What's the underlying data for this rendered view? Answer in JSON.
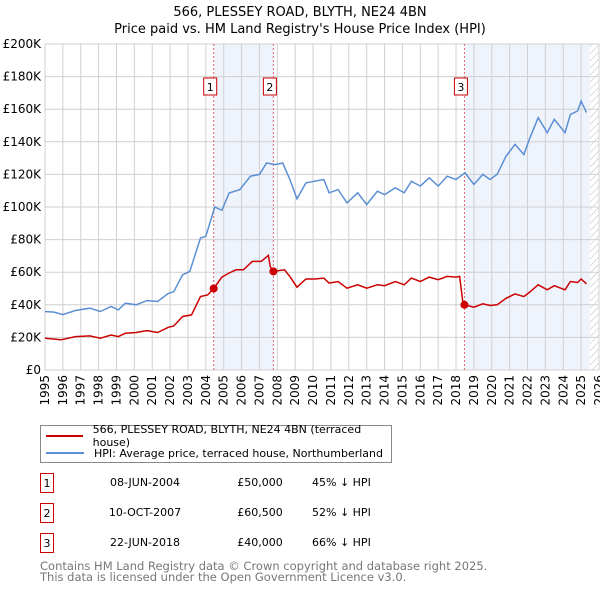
{
  "chart_data": {
    "type": "line",
    "title": "566, PLESSEY ROAD, BLYTH, NE24 4BN",
    "subtitle": "Price paid vs. HM Land Registry's House Price Index (HPI)",
    "xlim": [
      1995,
      2026
    ],
    "ylim": [
      0,
      200000
    ],
    "y_ticks": [
      {
        "v": 0,
        "label": "£0"
      },
      {
        "v": 20000,
        "label": "£20K"
      },
      {
        "v": 40000,
        "label": "£40K"
      },
      {
        "v": 60000,
        "label": "£60K"
      },
      {
        "v": 80000,
        "label": "£80K"
      },
      {
        "v": 100000,
        "label": "£100K"
      },
      {
        "v": 120000,
        "label": "£120K"
      },
      {
        "v": 140000,
        "label": "£140K"
      },
      {
        "v": 160000,
        "label": "£160K"
      },
      {
        "v": 180000,
        "label": "£180K"
      },
      {
        "v": 200000,
        "label": "£200K"
      }
    ],
    "x_ticks": [
      "1995",
      "1996",
      "1997",
      "1998",
      "1999",
      "2000",
      "2001",
      "2002",
      "2003",
      "2004",
      "2005",
      "2006",
      "2007",
      "2008",
      "2009",
      "2010",
      "2011",
      "2012",
      "2013",
      "2014",
      "2015",
      "2016",
      "2017",
      "2018",
      "2019",
      "2020",
      "2021",
      "2022",
      "2023",
      "2024",
      "2025",
      "2026"
    ],
    "grid": true,
    "shaded_ranges": [
      [
        2004.44,
        2007.78
      ],
      [
        2018.47,
        2025.5
      ]
    ],
    "hatched_from": 2025.5,
    "series": [
      {
        "name": "566, PLESSEY ROAD, BLYTH, NE24 4BN (terraced house)",
        "color": "#cc0000",
        "x": [
          1995.0,
          1995.9,
          1996.7,
          1997.5,
          1998.1,
          1998.7,
          1999.1,
          1999.5,
          2000.1,
          2000.7,
          2001.3,
          2001.9,
          2002.2,
          2002.7,
          2003.2,
          2003.7,
          2004.1,
          2004.44,
          2004.9,
          2005.3,
          2005.7,
          2006.1,
          2006.6,
          2007.1,
          2007.5,
          2007.6,
          2007.78,
          2008.4,
          2008.7,
          2009.1,
          2009.6,
          2010.1,
          2010.6,
          2010.9,
          2011.4,
          2011.9,
          2012.5,
          2013.0,
          2013.6,
          2014.0,
          2014.6,
          2015.1,
          2015.5,
          2016.0,
          2016.5,
          2017.0,
          2017.5,
          2018.0,
          2018.2,
          2018.4,
          2018.47,
          2019.0,
          2019.5,
          2019.9,
          2020.3,
          2020.8,
          2021.3,
          2021.8,
          2022.1,
          2022.6,
          2023.1,
          2023.5,
          2024.1,
          2024.4,
          2024.8,
          2025.0,
          2025.3
        ],
        "y": [
          19500,
          18500,
          20500,
          20900,
          19500,
          21500,
          20500,
          22600,
          23000,
          24200,
          23000,
          26200,
          27000,
          32800,
          33800,
          45100,
          46000,
          50000,
          57000,
          59500,
          61500,
          61500,
          66600,
          66600,
          70300,
          63500,
          60500,
          61500,
          57400,
          50800,
          55800,
          55800,
          56400,
          53300,
          54300,
          50200,
          52300,
          50200,
          52300,
          51700,
          54300,
          52300,
          56400,
          54300,
          57000,
          55400,
          57400,
          57000,
          57400,
          40000,
          40000,
          38500,
          40600,
          39600,
          40000,
          44000,
          46700,
          45000,
          47600,
          52300,
          49200,
          51700,
          49200,
          54300,
          53700,
          55800,
          52900
        ]
      },
      {
        "name": "HPI: Average price, terraced house, Northumberland",
        "color": "#5b8fd4",
        "x": [
          1995.0,
          1995.5,
          1996.0,
          1996.7,
          1997.5,
          1998.1,
          1998.7,
          1999.1,
          1999.5,
          2000.1,
          2000.7,
          2001.3,
          2001.9,
          2002.2,
          2002.7,
          2003.1,
          2003.7,
          2004.0,
          2004.5,
          2004.9,
          2005.3,
          2005.9,
          2006.5,
          2007.0,
          2007.4,
          2007.9,
          2008.3,
          2008.7,
          2009.1,
          2009.6,
          2010.1,
          2010.6,
          2010.9,
          2011.4,
          2011.9,
          2012.5,
          2013.0,
          2013.6,
          2014.0,
          2014.6,
          2015.1,
          2015.5,
          2016.0,
          2016.5,
          2017.0,
          2017.5,
          2018.0,
          2018.5,
          2019.0,
          2019.5,
          2019.9,
          2020.3,
          2020.8,
          2021.3,
          2021.8,
          2022.1,
          2022.6,
          2023.1,
          2023.5,
          2024.1,
          2024.4,
          2024.8,
          2025.0,
          2025.3
        ],
        "y": [
          35900,
          35500,
          34000,
          36500,
          37900,
          35900,
          39000,
          36900,
          41000,
          40000,
          42600,
          42000,
          47000,
          48000,
          58400,
          60500,
          81000,
          82000,
          100000,
          98000,
          108600,
          110700,
          118900,
          120000,
          127000,
          126000,
          127000,
          117000,
          105000,
          114800,
          115800,
          116900,
          108700,
          110700,
          102500,
          108700,
          101500,
          109700,
          107600,
          111700,
          108700,
          115800,
          112800,
          117900,
          112800,
          118900,
          116900,
          121000,
          113800,
          120000,
          116900,
          120000,
          131200,
          138400,
          132200,
          141500,
          154800,
          145600,
          153800,
          145600,
          156800,
          158900,
          165000,
          157900
        ]
      }
    ],
    "sales": [
      {
        "num": "1",
        "x": 2004.44,
        "y": 50000,
        "date": "08-JUN-2004",
        "price": "£50,000",
        "pct": "45% ↓ HPI"
      },
      {
        "num": "2",
        "x": 2007.78,
        "y": 60500,
        "date": "10-OCT-2007",
        "price": "£60,500",
        "pct": "52% ↓ HPI"
      },
      {
        "num": "3",
        "x": 2018.47,
        "y": 40000,
        "date": "22-JUN-2018",
        "price": "£40,000",
        "pct": "66% ↓ HPI"
      }
    ]
  },
  "legend": {
    "property": "566, PLESSEY ROAD, BLYTH, NE24 4BN (terraced house)",
    "hpi": "HPI: Average price, terraced house, Northumberland"
  },
  "footer": {
    "line1": "Contains HM Land Registry data © Crown copyright and database right 2025.",
    "line2": "This data is licensed under the Open Government Licence v3.0."
  }
}
